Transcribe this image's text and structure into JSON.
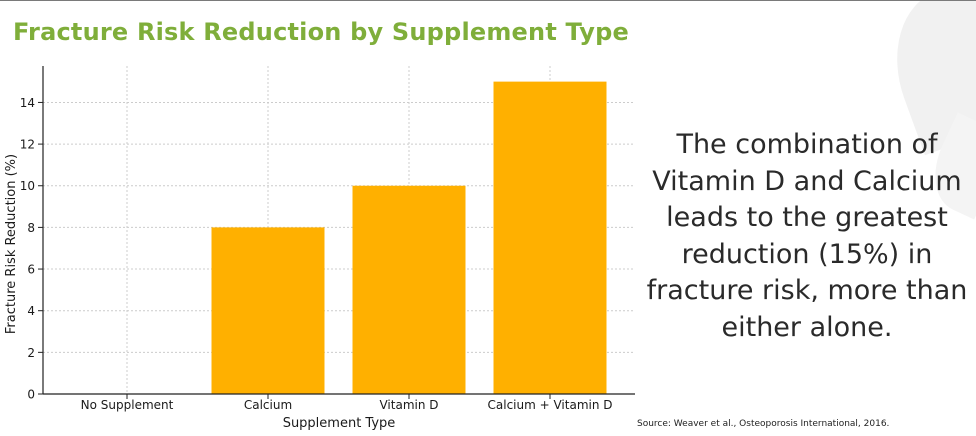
{
  "title": "Fracture Risk Reduction by Supplement Type",
  "callout": "The combination of Vitamin D and Calcium leads to the greatest reduction (15%) in fracture risk, more than either alone.",
  "source": "Source: Weaver et al., Osteoporosis International, 2016.",
  "colors": {
    "bar": "#FFB000",
    "title": "#7FAE3A",
    "grid": "#cccccc"
  },
  "chart_data": {
    "type": "bar",
    "categories": [
      "No Supplement",
      "Calcium",
      "Vitamin D",
      "Calcium + Vitamin D"
    ],
    "values": [
      0,
      8,
      10,
      15
    ],
    "xlabel": "Supplement Type",
    "ylabel": "Fracture Risk Reduction (%)",
    "ylim": [
      0,
      15.75
    ],
    "yticks": [
      0,
      2,
      4,
      6,
      8,
      10,
      12,
      14
    ],
    "grid": true
  }
}
